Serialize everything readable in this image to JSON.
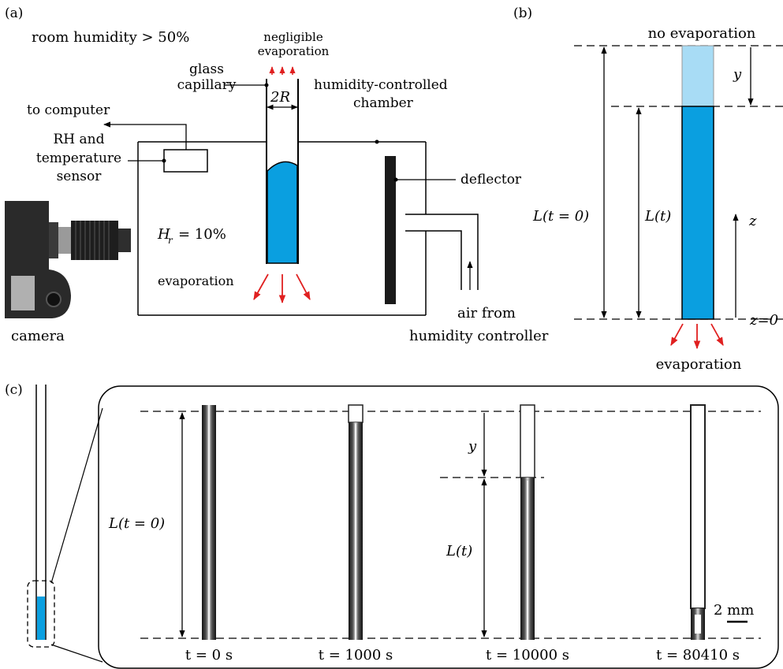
{
  "panel_a": {
    "label": "(a)",
    "room_humidity": "room humidity > 50%",
    "negligible_line1": "negligible",
    "negligible_line2": "evaporation",
    "glass_line1": "glass",
    "glass_line2": "capillary",
    "two_r": "2R",
    "to_computer": "to computer",
    "sensor_line1": "RH and",
    "sensor_line2": "temperature",
    "sensor_line3": "sensor",
    "chamber_line1": "humidity-controlled",
    "chamber_line2": "chamber",
    "deflector": "deflector",
    "hr": "H",
    "hr_sub": "r",
    "hr_value": "= 10%",
    "evaporation": "evaporation",
    "camera": "camera",
    "air_line1": "air from",
    "air_line2": "humidity controller"
  },
  "panel_b": {
    "label": "(b)",
    "no_evaporation": "no evaporation",
    "y": "y",
    "l0": "L(t = 0)",
    "lt": "L(t)",
    "z": "z",
    "z0": "z=0",
    "evaporation": "evaporation"
  },
  "panel_c": {
    "label": "(c)",
    "l0": "L(t = 0)",
    "lt": "L(t)",
    "y": "y",
    "scale": "2 mm",
    "times": [
      "t = 0 s",
      "t = 1000 s",
      "t = 10000 s",
      "t = 80410 s"
    ]
  },
  "colors": {
    "water": "#0a9fe0",
    "water_light": "#a8dcf5",
    "arrow_red": "#e02020",
    "dark": "#1a1a1a"
  }
}
